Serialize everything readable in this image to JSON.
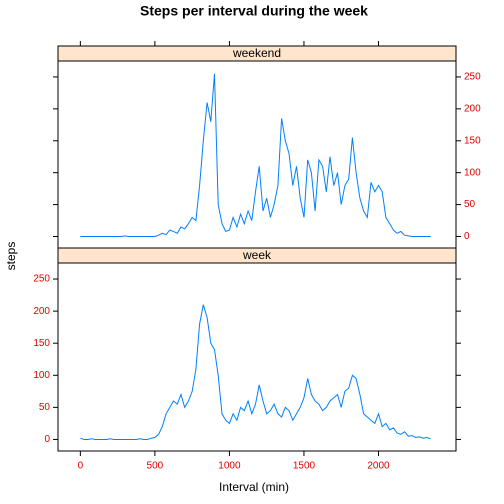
{
  "chart_data": {
    "type": "line",
    "title": "Steps per interval during the week",
    "xlabel": "Interval (min)",
    "ylabel": "steps",
    "x": [
      0,
      25,
      50,
      75,
      100,
      125,
      150,
      175,
      200,
      225,
      250,
      275,
      300,
      325,
      350,
      375,
      400,
      425,
      450,
      475,
      500,
      525,
      550,
      575,
      600,
      625,
      650,
      675,
      700,
      725,
      750,
      775,
      800,
      825,
      850,
      875,
      900,
      925,
      950,
      975,
      1000,
      1025,
      1050,
      1075,
      1100,
      1125,
      1150,
      1175,
      1200,
      1225,
      1250,
      1275,
      1300,
      1325,
      1350,
      1375,
      1400,
      1425,
      1450,
      1475,
      1500,
      1525,
      1550,
      1575,
      1600,
      1625,
      1650,
      1675,
      1700,
      1725,
      1750,
      1775,
      1800,
      1825,
      1850,
      1875,
      1900,
      1925,
      1950,
      1975,
      2000,
      2025,
      2050,
      2075,
      2100,
      2125,
      2150,
      2175,
      2200,
      2225,
      2250,
      2275,
      2300,
      2325,
      2350
    ],
    "series": [
      {
        "name": "weekend",
        "color": "#0080ff",
        "values": [
          0,
          0,
          0,
          0,
          0,
          0,
          0,
          0,
          0,
          0,
          0,
          0,
          1,
          0,
          0,
          0,
          0,
          0,
          0,
          0,
          0,
          2,
          5,
          3,
          10,
          8,
          5,
          15,
          12,
          20,
          30,
          25,
          80,
          150,
          210,
          180,
          255,
          50,
          20,
          8,
          10,
          30,
          15,
          35,
          20,
          40,
          25,
          70,
          110,
          40,
          60,
          30,
          50,
          80,
          185,
          150,
          130,
          80,
          110,
          60,
          30,
          120,
          100,
          40,
          120,
          110,
          70,
          125,
          80,
          100,
          50,
          80,
          90,
          155,
          100,
          60,
          40,
          30,
          85,
          70,
          80,
          70,
          30,
          20,
          10,
          5,
          8,
          2,
          1,
          0,
          0,
          0,
          0,
          0,
          0
        ]
      },
      {
        "name": "week",
        "color": "#0080ff",
        "values": [
          2,
          0,
          0,
          1,
          0,
          0,
          0,
          0,
          1,
          0,
          0,
          0,
          0,
          0,
          0,
          0,
          1,
          0,
          0,
          2,
          3,
          8,
          20,
          40,
          50,
          60,
          55,
          70,
          50,
          60,
          75,
          110,
          180,
          210,
          190,
          150,
          140,
          100,
          40,
          30,
          25,
          40,
          30,
          50,
          45,
          60,
          40,
          55,
          85,
          60,
          40,
          45,
          55,
          40,
          35,
          50,
          45,
          30,
          40,
          50,
          65,
          95,
          70,
          60,
          55,
          45,
          50,
          60,
          65,
          70,
          50,
          75,
          80,
          100,
          95,
          70,
          40,
          35,
          30,
          25,
          40,
          20,
          25,
          15,
          18,
          10,
          8,
          12,
          5,
          6,
          3,
          4,
          2,
          3,
          1
        ]
      }
    ],
    "xlim": [
      -150,
      2520
    ],
    "xticks": [
      0,
      500,
      1000,
      1500,
      2000
    ],
    "ylim": [
      -18,
      275
    ],
    "yticks": [
      0,
      50,
      100,
      150,
      200,
      250
    ]
  }
}
